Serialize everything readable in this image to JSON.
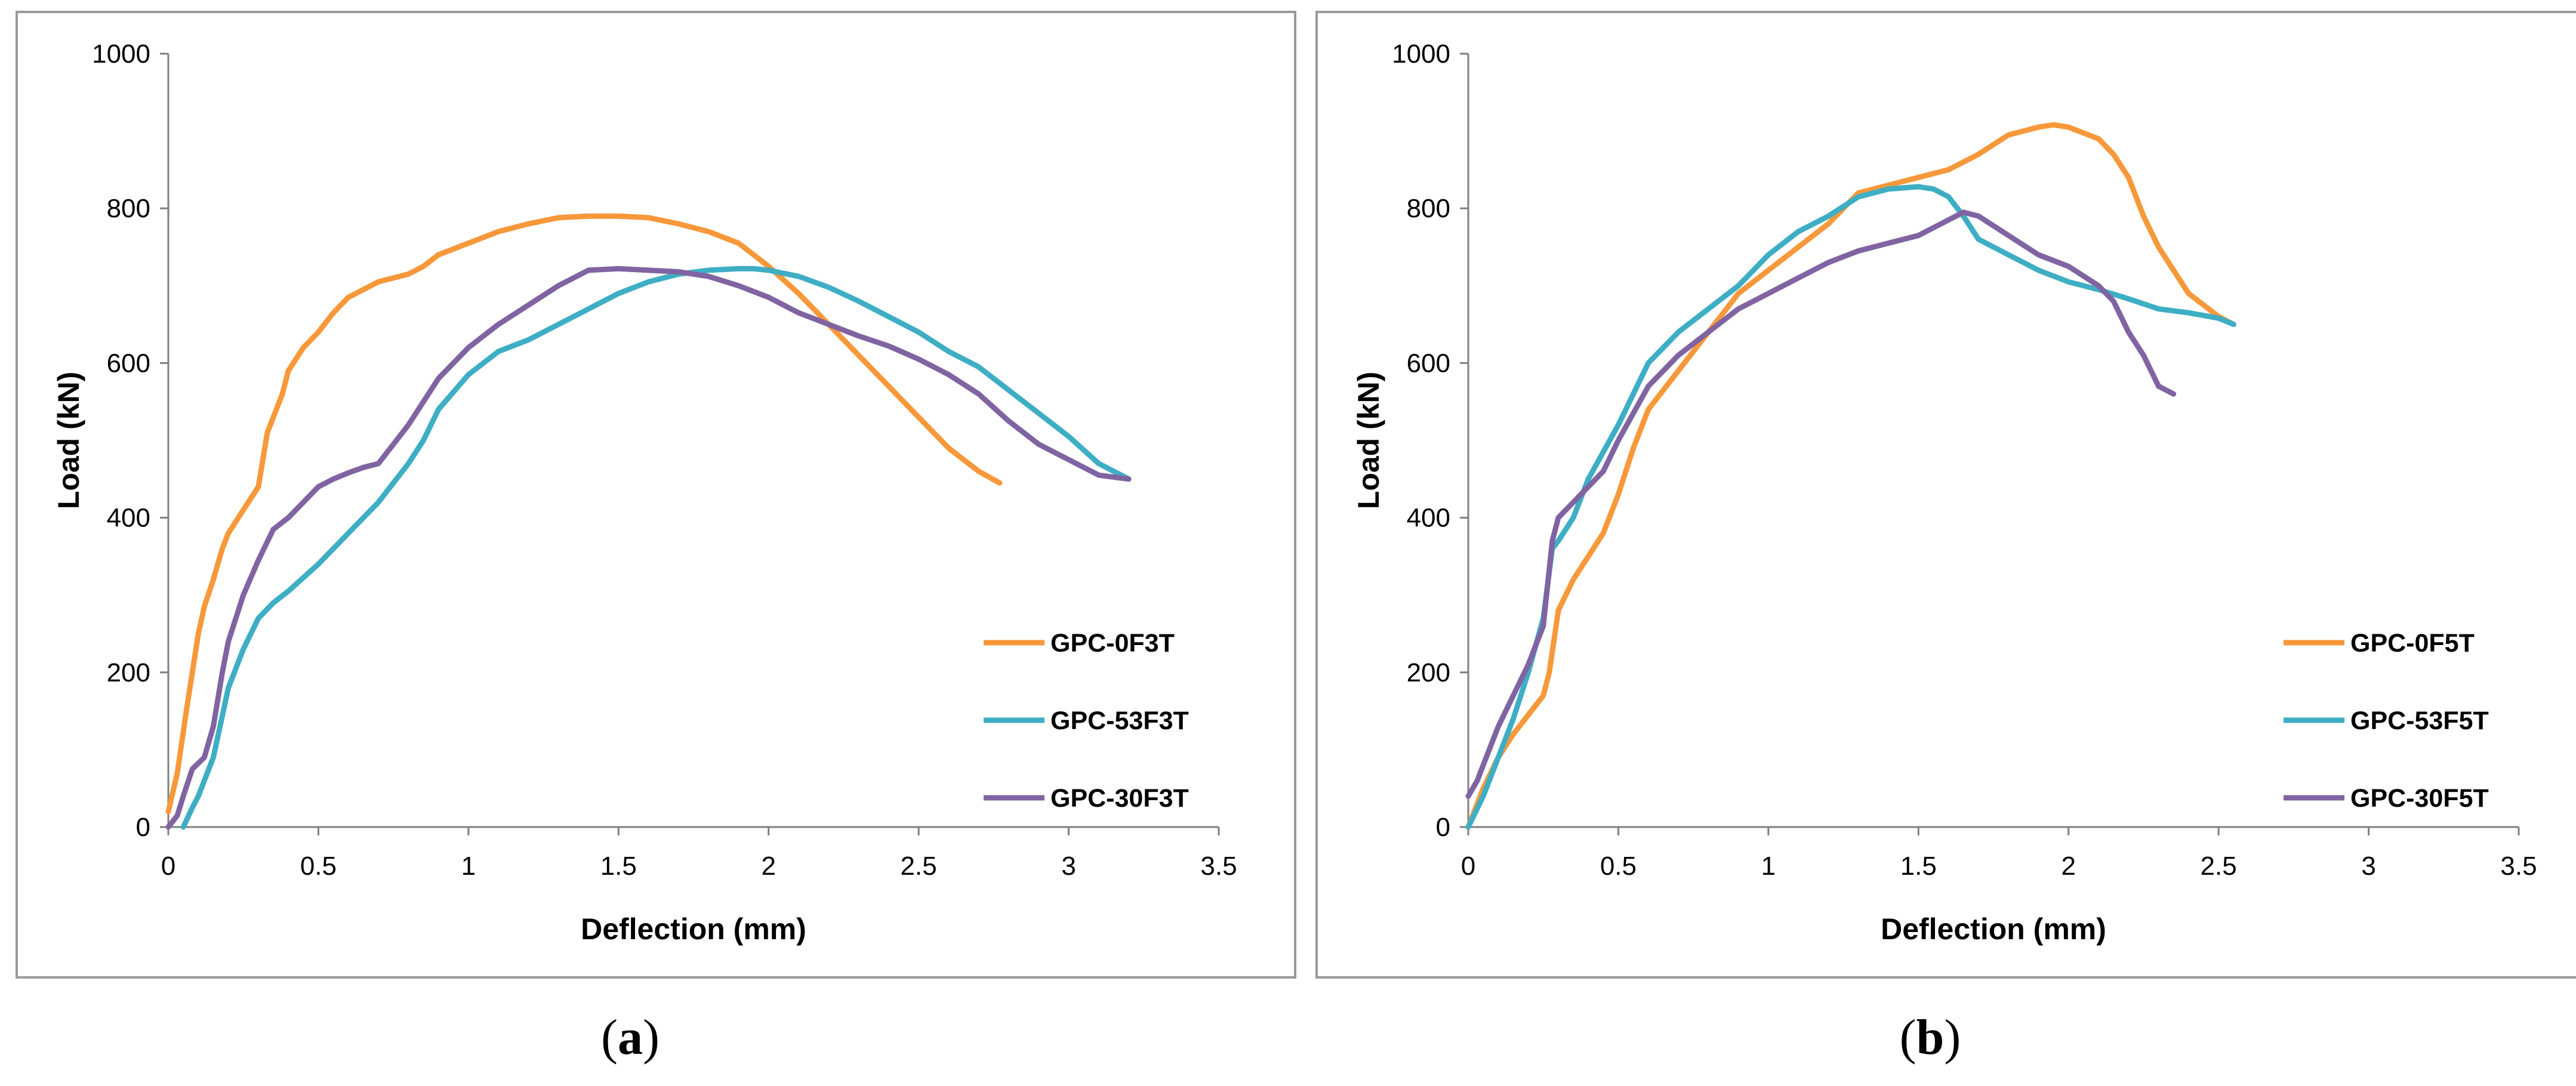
{
  "chart_data": [
    {
      "type": "line",
      "panel_label": "a",
      "xlabel": "Deflection (mm)",
      "ylabel": "Load (kN)",
      "xlim": [
        0,
        3.5
      ],
      "ylim": [
        0,
        1000
      ],
      "x_ticks": [
        "0",
        "0.5",
        "1",
        "1.5",
        "2",
        "2.5",
        "3",
        "3.5"
      ],
      "y_ticks": [
        "0",
        "200",
        "400",
        "600",
        "800",
        "1000"
      ],
      "grid": false,
      "legend_position": "right-middle",
      "series": [
        {
          "name": "GPC-0F3T",
          "color": "#f7983a",
          "x": [
            0,
            0.03,
            0.06,
            0.1,
            0.12,
            0.15,
            0.18,
            0.2,
            0.25,
            0.3,
            0.33,
            0.38,
            0.4,
            0.45,
            0.5,
            0.55,
            0.6,
            0.7,
            0.8,
            0.85,
            0.9,
            1.0,
            1.1,
            1.2,
            1.3,
            1.4,
            1.5,
            1.6,
            1.7,
            1.8,
            1.9,
            2.0,
            2.1,
            2.2,
            2.3,
            2.4,
            2.5,
            2.6,
            2.7,
            2.77
          ],
          "y": [
            20,
            70,
            150,
            250,
            285,
            320,
            360,
            380,
            410,
            440,
            510,
            560,
            590,
            620,
            640,
            665,
            685,
            705,
            715,
            725,
            740,
            755,
            770,
            780,
            788,
            790,
            790,
            788,
            780,
            770,
            755,
            725,
            690,
            650,
            610,
            570,
            530,
            490,
            460,
            445
          ]
        },
        {
          "name": "GPC-53F3T",
          "color": "#3eaec4",
          "x": [
            0.05,
            0.08,
            0.1,
            0.15,
            0.2,
            0.25,
            0.3,
            0.35,
            0.4,
            0.5,
            0.6,
            0.7,
            0.8,
            0.85,
            0.9,
            1.0,
            1.1,
            1.2,
            1.3,
            1.4,
            1.5,
            1.6,
            1.7,
            1.8,
            1.9,
            1.95,
            2.0,
            2.1,
            2.2,
            2.3,
            2.4,
            2.5,
            2.6,
            2.7,
            2.8,
            2.9,
            3.0,
            3.1,
            3.2
          ],
          "y": [
            0,
            25,
            40,
            90,
            180,
            230,
            270,
            290,
            305,
            340,
            380,
            420,
            470,
            500,
            540,
            585,
            615,
            630,
            650,
            670,
            690,
            705,
            715,
            720,
            722,
            722,
            720,
            712,
            698,
            680,
            660,
            640,
            615,
            595,
            565,
            535,
            505,
            470,
            450
          ]
        },
        {
          "name": "GPC-30F3T",
          "color": "#8064a2",
          "x": [
            0,
            0.03,
            0.05,
            0.08,
            0.12,
            0.15,
            0.18,
            0.2,
            0.25,
            0.3,
            0.35,
            0.4,
            0.45,
            0.5,
            0.55,
            0.6,
            0.65,
            0.7,
            0.8,
            0.9,
            1.0,
            1.1,
            1.2,
            1.3,
            1.4,
            1.5,
            1.6,
            1.7,
            1.8,
            1.9,
            2.0,
            2.1,
            2.2,
            2.3,
            2.4,
            2.5,
            2.6,
            2.7,
            2.8,
            2.9,
            3.0,
            3.1,
            3.2
          ],
          "y": [
            0,
            15,
            40,
            75,
            90,
            130,
            200,
            240,
            300,
            345,
            385,
            400,
            420,
            440,
            450,
            458,
            465,
            470,
            520,
            580,
            620,
            650,
            675,
            700,
            720,
            722,
            720,
            718,
            712,
            700,
            685,
            665,
            650,
            635,
            622,
            605,
            585,
            560,
            525,
            495,
            475,
            455,
            450
          ]
        }
      ]
    },
    {
      "type": "line",
      "panel_label": "b",
      "xlabel": "Deflection (mm)",
      "ylabel": "Load (kN)",
      "xlim": [
        0,
        3.5
      ],
      "ylim": [
        0,
        1000
      ],
      "x_ticks": [
        "0",
        "0.5",
        "1",
        "1.5",
        "2",
        "2.5",
        "3",
        "3.5"
      ],
      "y_ticks": [
        "0",
        "200",
        "400",
        "600",
        "800",
        "1000"
      ],
      "grid": false,
      "legend_position": "right-middle",
      "series": [
        {
          "name": "GPC-0F5T",
          "color": "#f7983a",
          "x": [
            0,
            0.05,
            0.1,
            0.15,
            0.2,
            0.25,
            0.27,
            0.3,
            0.35,
            0.4,
            0.45,
            0.5,
            0.55,
            0.6,
            0.7,
            0.8,
            0.9,
            1.0,
            1.1,
            1.2,
            1.3,
            1.4,
            1.5,
            1.6,
            1.7,
            1.8,
            1.9,
            1.95,
            2.0,
            2.1,
            2.15,
            2.2,
            2.25,
            2.3,
            2.35,
            2.4,
            2.5,
            2.55
          ],
          "y": [
            0,
            50,
            90,
            120,
            145,
            170,
            200,
            280,
            320,
            350,
            380,
            430,
            490,
            540,
            590,
            640,
            690,
            720,
            750,
            780,
            820,
            830,
            840,
            850,
            870,
            895,
            905,
            908,
            905,
            890,
            870,
            840,
            790,
            750,
            720,
            690,
            660,
            650
          ]
        },
        {
          "name": "GPC-53F5T",
          "color": "#3eaec4",
          "x": [
            0,
            0.05,
            0.1,
            0.15,
            0.2,
            0.25,
            0.28,
            0.3,
            0.35,
            0.4,
            0.5,
            0.6,
            0.7,
            0.8,
            0.9,
            1.0,
            1.1,
            1.2,
            1.3,
            1.4,
            1.5,
            1.55,
            1.6,
            1.65,
            1.7,
            1.8,
            1.9,
            2.0,
            2.1,
            2.2,
            2.3,
            2.4,
            2.5,
            2.55
          ],
          "y": [
            0,
            40,
            90,
            140,
            200,
            270,
            360,
            370,
            400,
            450,
            520,
            600,
            640,
            670,
            700,
            740,
            770,
            790,
            815,
            825,
            828,
            825,
            815,
            790,
            760,
            740,
            720,
            705,
            695,
            683,
            670,
            665,
            658,
            650
          ]
        },
        {
          "name": "GPC-30F5T",
          "color": "#8064a2",
          "x": [
            0,
            0.03,
            0.05,
            0.1,
            0.15,
            0.2,
            0.25,
            0.28,
            0.3,
            0.35,
            0.4,
            0.45,
            0.5,
            0.6,
            0.7,
            0.8,
            0.9,
            1.0,
            1.1,
            1.2,
            1.3,
            1.4,
            1.5,
            1.6,
            1.65,
            1.7,
            1.8,
            1.9,
            2.0,
            2.1,
            2.15,
            2.2,
            2.25,
            2.3,
            2.35
          ],
          "y": [
            40,
            60,
            80,
            130,
            170,
            210,
            260,
            370,
            400,
            420,
            440,
            460,
            500,
            570,
            610,
            640,
            670,
            690,
            710,
            730,
            745,
            755,
            765,
            785,
            795,
            790,
            765,
            740,
            725,
            700,
            680,
            640,
            610,
            570,
            560
          ]
        }
      ]
    }
  ],
  "captions": {
    "a": "a",
    "b": "b"
  }
}
